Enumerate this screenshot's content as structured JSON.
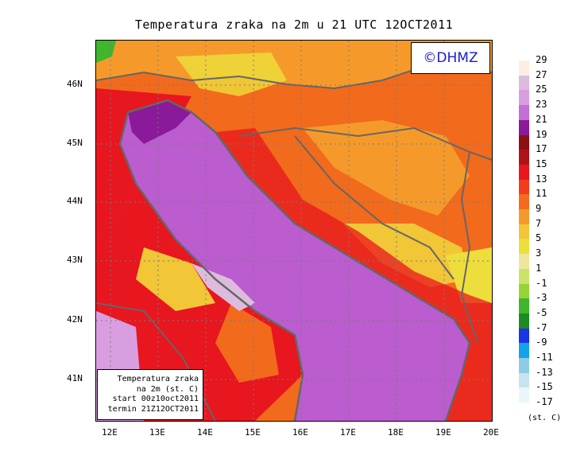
{
  "title": "Temperatura zraka na 2m u 21 UTC 12OCT2011",
  "copyright": "©DHMZ",
  "info": {
    "line1": "Temperatura zraka",
    "line2": "na 2m (st. C)",
    "line3": "start 00z10oct2011",
    "line4": "termin 21Z12OCT2011"
  },
  "lat_labels": [
    "46N",
    "45N",
    "44N",
    "43N",
    "42N",
    "41N"
  ],
  "lon_labels": [
    "12E",
    "13E",
    "14E",
    "15E",
    "16E",
    "17E",
    "18E",
    "19E",
    "20E"
  ],
  "legend": {
    "unit": "(st. C)",
    "labels": [
      "29",
      "27",
      "25",
      "23",
      "21",
      "19",
      "17",
      "15",
      "13",
      "11",
      "9",
      "7",
      "5",
      "3",
      "1",
      "-1",
      "-3",
      "-5",
      "-7",
      "-9",
      "-11",
      "-13",
      "-15",
      "-17"
    ],
    "colors": [
      "#fcefe2",
      "#dcbcdc",
      "#d99ee0",
      "#c36fd7",
      "#8a1a9a",
      "#8c0f14",
      "#ae1218",
      "#e8161f",
      "#f23c1c",
      "#f56b1d",
      "#f59a2a",
      "#f1c637",
      "#eede3c",
      "#ede79c",
      "#c9e36a",
      "#98d239",
      "#3fb62b",
      "#1f8a22",
      "#1a35e6",
      "#16a2e8",
      "#8ecce6",
      "#c5e4ee",
      "#eaf7fa"
    ]
  },
  "colors": {
    "adriatic": "#bb5ccf",
    "land_warm": "#f26a1c",
    "land_hot": "#e8161f",
    "border": "#666666"
  }
}
